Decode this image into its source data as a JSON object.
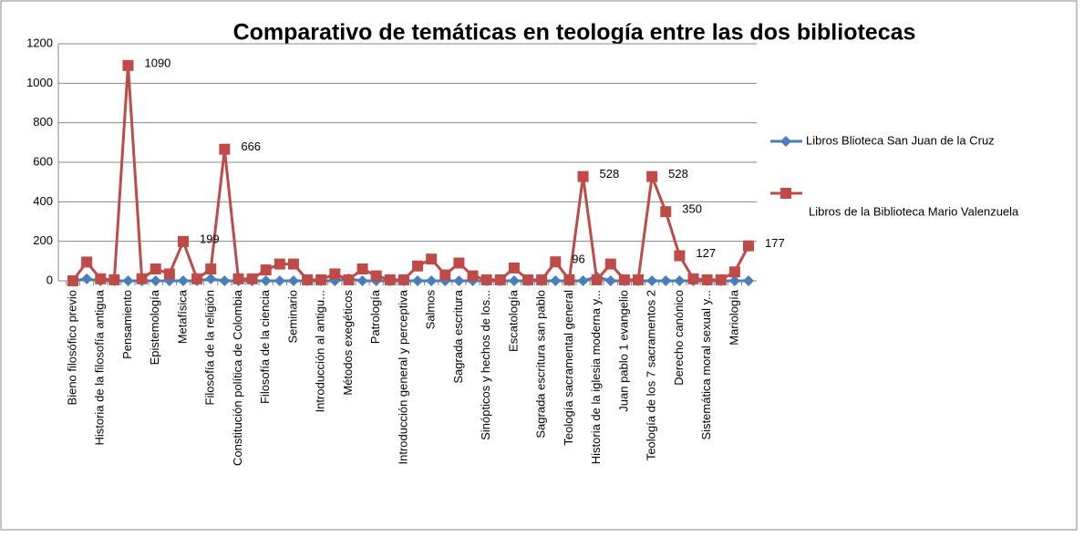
{
  "chart_data": {
    "type": "line",
    "title": "Comparativo de temáticas  en teología entre las dos bibliotecas",
    "categories": [
      "Bieno filosófico previo",
      null,
      "Historia de la filosofía antigua",
      null,
      "Pensamiento",
      null,
      "Epistemología",
      null,
      "Metafísica",
      null,
      "Filosofía de la religión",
      null,
      "Constitución política de Colombia",
      null,
      "Filosofía de la ciencia",
      null,
      "Seminario",
      null,
      "Introducción al antigu...",
      null,
      "Métodos exegéticos",
      null,
      "Patrología",
      null,
      "Introducción general y perceptiva",
      null,
      "Salmos",
      null,
      "Sagrada escritura",
      null,
      "Sinópticos y hechos de los...",
      null,
      "Escatología",
      null,
      "Sagrada escritura san pablo",
      null,
      "Teología sacramental general",
      null,
      "Historia de la iglesia moderna y...",
      null,
      "Juan pablo 1 evangelio",
      null,
      "Teología de los 7 sacramentos 2",
      null,
      "Derecho canónico",
      null,
      "Sistemática moral sexual y...",
      null,
      "Mariología",
      null
    ],
    "series": [
      {
        "name": "Libros Blioteca San Juan de la Cruz",
        "color": "#4a7ebb",
        "marker": "diamond",
        "values": [
          0,
          10,
          0,
          0,
          0,
          0,
          0,
          0,
          0,
          0,
          10,
          0,
          0,
          0,
          0,
          0,
          0,
          0,
          0,
          0,
          10,
          0,
          0,
          0,
          0,
          0,
          0,
          0,
          0,
          0,
          0,
          0,
          0,
          0,
          0,
          0,
          0,
          0,
          20,
          0,
          0,
          0,
          0,
          0,
          0,
          0,
          0,
          0,
          0,
          0
        ]
      },
      {
        "name": "Libros de la Biblioteca Mario Valenzuela",
        "color": "#be4b48",
        "marker": "square",
        "values": [
          0,
          95,
          10,
          5,
          1090,
          10,
          60,
          35,
          199,
          10,
          60,
          666,
          10,
          10,
          55,
          85,
          85,
          5,
          5,
          35,
          5,
          60,
          25,
          5,
          5,
          75,
          110,
          30,
          90,
          25,
          5,
          5,
          65,
          5,
          5,
          96,
          5,
          528,
          5,
          85,
          5,
          5,
          528,
          350,
          127,
          10,
          5,
          5,
          45,
          177
        ],
        "data_labels": [
          4,
          8,
          11,
          35,
          37,
          42,
          43,
          44,
          49
        ]
      }
    ],
    "ylim": [
      0,
      1200
    ],
    "yticks": [
      0,
      200,
      400,
      600,
      800,
      1000,
      1200
    ],
    "grid": true,
    "legend": "right"
  }
}
